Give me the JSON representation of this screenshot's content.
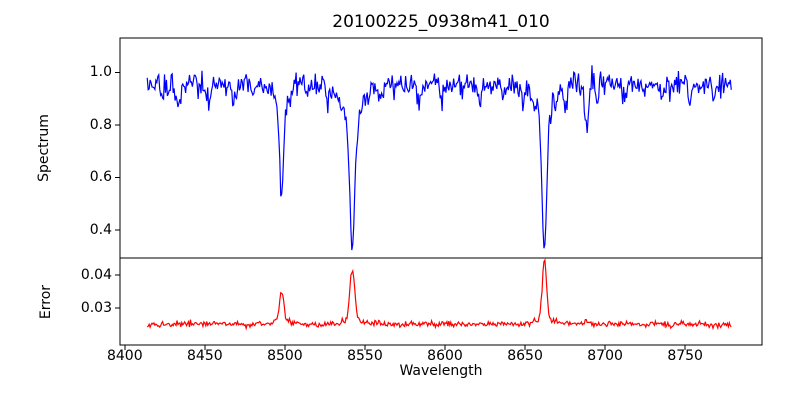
{
  "title": "20100225_0938m41_010",
  "colors": {
    "spectrum_line": "#0000ff",
    "error_line": "#ff0000",
    "axis": "#000000",
    "background": "#ffffff"
  },
  "chart_data": {
    "type": "line",
    "title": "20100225_0938m41_010",
    "xlabel": "Wavelength",
    "xlim": [
      8397,
      8798
    ],
    "x_tick_values": [
      8400,
      8450,
      8500,
      8550,
      8600,
      8650,
      8700,
      8750
    ],
    "x_tick_labels": [
      "8400",
      "8450",
      "8500",
      "8550",
      "8600",
      "8650",
      "8700",
      "8750"
    ],
    "x_data_range": [
      8414,
      8779
    ],
    "x_step": 0.6,
    "seed": 20100225,
    "panels": [
      {
        "name": "spectrum",
        "ylabel": "Spectrum",
        "ylim": [
          0.293,
          1.131
        ],
        "y_tick_values": [
          0.4,
          0.6,
          0.8,
          1.0
        ],
        "y_tick_labels": [
          "0.4",
          "0.6",
          "0.8",
          "1.0"
        ],
        "color": "#0000ff",
        "continuum": 0.965,
        "noise_sigma": 0.022,
        "noise_skew": 0.01,
        "absorption_lines": [
          {
            "center": 8498.0,
            "depth": 0.38,
            "sigma": 1.2,
            "wing_depth": 0.07,
            "wing_sigma": 5.0
          },
          {
            "center": 8542.1,
            "depth": 0.5,
            "sigma": 1.6,
            "wing_depth": 0.13,
            "wing_sigma": 7.0
          },
          {
            "center": 8662.1,
            "depth": 0.52,
            "sigma": 1.4,
            "wing_depth": 0.115,
            "wing_sigma": 6.0
          },
          {
            "center": 8688.6,
            "depth": 0.17,
            "sigma": 1.2,
            "wing_depth": 0.0,
            "wing_sigma": 1.0
          },
          {
            "center": 8424.0,
            "depth": 0.05,
            "sigma": 1.0,
            "wing_depth": 0.0,
            "wing_sigma": 1.0
          },
          {
            "center": 8433.5,
            "depth": 0.09,
            "sigma": 1.2,
            "wing_depth": 0.0,
            "wing_sigma": 1.0
          },
          {
            "center": 8451.0,
            "depth": 0.06,
            "sigma": 1.0,
            "wing_depth": 0.0,
            "wing_sigma": 1.0
          },
          {
            "center": 8468.0,
            "depth": 0.07,
            "sigma": 1.1,
            "wing_depth": 0.0,
            "wing_sigma": 1.0
          },
          {
            "center": 8480.0,
            "depth": 0.04,
            "sigma": 1.0,
            "wing_depth": 0.0,
            "wing_sigma": 1.0
          },
          {
            "center": 8514.0,
            "depth": 0.05,
            "sigma": 1.0,
            "wing_depth": 0.0,
            "wing_sigma": 1.0
          },
          {
            "center": 8527.0,
            "depth": 0.04,
            "sigma": 1.2,
            "wing_depth": 0.0,
            "wing_sigma": 1.0
          },
          {
            "center": 8560.0,
            "depth": 0.04,
            "sigma": 1.0,
            "wing_depth": 0.0,
            "wing_sigma": 1.0
          },
          {
            "center": 8583.5,
            "depth": 0.07,
            "sigma": 1.1,
            "wing_depth": 0.0,
            "wing_sigma": 1.0
          },
          {
            "center": 8598.0,
            "depth": 0.05,
            "sigma": 1.0,
            "wing_depth": 0.0,
            "wing_sigma": 1.0
          },
          {
            "center": 8611.0,
            "depth": 0.04,
            "sigma": 1.0,
            "wing_depth": 0.0,
            "wing_sigma": 1.0
          },
          {
            "center": 8621.5,
            "depth": 0.06,
            "sigma": 1.1,
            "wing_depth": 0.0,
            "wing_sigma": 1.0
          },
          {
            "center": 8636.0,
            "depth": 0.04,
            "sigma": 1.0,
            "wing_depth": 0.0,
            "wing_sigma": 1.0
          },
          {
            "center": 8648.0,
            "depth": 0.05,
            "sigma": 1.0,
            "wing_depth": 0.0,
            "wing_sigma": 1.0
          },
          {
            "center": 8675.5,
            "depth": 0.08,
            "sigma": 1.1,
            "wing_depth": 0.0,
            "wing_sigma": 1.0
          },
          {
            "center": 8695.0,
            "depth": 0.04,
            "sigma": 1.0,
            "wing_depth": 0.0,
            "wing_sigma": 1.0
          },
          {
            "center": 8712.0,
            "depth": 0.05,
            "sigma": 1.0,
            "wing_depth": 0.0,
            "wing_sigma": 1.0
          },
          {
            "center": 8724.0,
            "depth": 0.04,
            "sigma": 1.0,
            "wing_depth": 0.0,
            "wing_sigma": 1.0
          },
          {
            "center": 8736.0,
            "depth": 0.05,
            "sigma": 1.1,
            "wing_depth": 0.0,
            "wing_sigma": 1.0
          },
          {
            "center": 8753.0,
            "depth": 0.07,
            "sigma": 1.1,
            "wing_depth": 0.0,
            "wing_sigma": 1.0
          },
          {
            "center": 8768.0,
            "depth": 0.04,
            "sigma": 1.0,
            "wing_depth": 0.0,
            "wing_sigma": 1.0
          }
        ]
      },
      {
        "name": "error",
        "ylabel": "Error",
        "ylim": [
          0.0188,
          0.0452
        ],
        "y_tick_values": [
          0.03,
          0.04
        ],
        "y_tick_labels": [
          "0.03",
          "0.04"
        ],
        "color": "#ff0000",
        "baseline": 0.0251,
        "noise_sigma": 0.00045,
        "peaks": [
          {
            "center": 8498.0,
            "height": 0.0095,
            "sigma": 1.3
          },
          {
            "center": 8542.1,
            "height": 0.0155,
            "sigma": 1.5
          },
          {
            "center": 8662.1,
            "height": 0.0185,
            "sigma": 1.3
          },
          {
            "center": 8675.5,
            "height": 0.0008,
            "sigma": 1.0
          },
          {
            "center": 8688.6,
            "height": 0.0008,
            "sigma": 1.2
          }
        ],
        "end_dip": {
          "start": 8776,
          "slope": 0.0004
        }
      }
    ]
  }
}
